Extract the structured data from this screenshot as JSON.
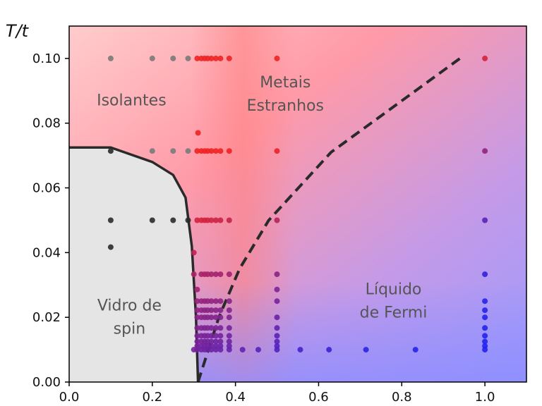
{
  "chart_data": {
    "type": "scatter",
    "ylabel": "T/t",
    "xlabel": "",
    "xlim": [
      0.0,
      1.1
    ],
    "ylim": [
      0.0,
      0.11
    ],
    "x_ticks": [
      "0.0",
      "0.2",
      "0.4",
      "0.6",
      "0.8",
      "1.0"
    ],
    "y_ticks": [
      "0.00",
      "0.02",
      "0.04",
      "0.06",
      "0.08",
      "0.10"
    ],
    "grid": false,
    "regions": [
      {
        "label_lines": [
          "Isolantes"
        ],
        "x": 0.15,
        "y": 0.087
      },
      {
        "label_lines": [
          "Metais",
          "Estranhos"
        ],
        "x": 0.52,
        "y": 0.089
      },
      {
        "label_lines": [
          "Vidro de",
          "spin"
        ],
        "x": 0.145,
        "y": 0.02
      },
      {
        "label_lines": [
          "Líquido",
          "de Fermi"
        ],
        "x": 0.78,
        "y": 0.025
      }
    ],
    "spin_glass_boundary": [
      [
        0.0,
        0.0725
      ],
      [
        0.1,
        0.0725
      ],
      [
        0.2,
        0.068
      ],
      [
        0.25,
        0.064
      ],
      [
        0.28,
        0.057
      ],
      [
        0.295,
        0.042
      ],
      [
        0.305,
        0.02
      ],
      [
        0.31,
        0.0
      ]
    ],
    "crossover_dashed": [
      [
        0.31,
        0.0
      ],
      [
        0.36,
        0.02
      ],
      [
        0.41,
        0.035
      ],
      [
        0.48,
        0.05
      ],
      [
        0.63,
        0.071
      ],
      [
        0.94,
        0.1
      ]
    ],
    "points": [
      [
        0.1,
        0.1
      ],
      [
        0.2,
        0.1
      ],
      [
        0.25,
        0.1
      ],
      [
        0.286,
        0.1
      ],
      [
        0.308,
        0.1
      ],
      [
        0.318,
        0.1
      ],
      [
        0.326,
        0.1
      ],
      [
        0.333,
        0.1
      ],
      [
        0.342,
        0.1
      ],
      [
        0.353,
        0.1
      ],
      [
        0.364,
        0.1
      ],
      [
        0.385,
        0.1
      ],
      [
        0.5,
        0.1
      ],
      [
        1.0,
        0.1
      ],
      [
        0.31,
        0.077
      ],
      [
        0.1,
        0.0714
      ],
      [
        0.2,
        0.0714
      ],
      [
        0.25,
        0.0714
      ],
      [
        0.286,
        0.0714
      ],
      [
        0.308,
        0.0714
      ],
      [
        0.318,
        0.0714
      ],
      [
        0.326,
        0.0714
      ],
      [
        0.333,
        0.0714
      ],
      [
        0.342,
        0.0714
      ],
      [
        0.353,
        0.0714
      ],
      [
        0.364,
        0.0714
      ],
      [
        0.385,
        0.0714
      ],
      [
        0.5,
        0.0714
      ],
      [
        1.0,
        0.0714
      ],
      [
        0.1,
        0.05
      ],
      [
        0.2,
        0.05
      ],
      [
        0.25,
        0.05
      ],
      [
        0.286,
        0.05
      ],
      [
        0.308,
        0.05
      ],
      [
        0.318,
        0.05
      ],
      [
        0.326,
        0.05
      ],
      [
        0.333,
        0.05
      ],
      [
        0.342,
        0.05
      ],
      [
        0.353,
        0.05
      ],
      [
        0.364,
        0.05
      ],
      [
        0.385,
        0.05
      ],
      [
        0.5,
        0.05
      ],
      [
        1.0,
        0.05
      ],
      [
        0.1,
        0.0417
      ],
      [
        0.3,
        0.04
      ],
      [
        0.3,
        0.0333
      ],
      [
        0.318,
        0.0333
      ],
      [
        0.326,
        0.0333
      ],
      [
        0.333,
        0.0333
      ],
      [
        0.342,
        0.0333
      ],
      [
        0.353,
        0.0333
      ],
      [
        0.364,
        0.0333
      ],
      [
        0.385,
        0.0333
      ],
      [
        0.5,
        0.0333
      ],
      [
        1.0,
        0.0333
      ],
      [
        0.308,
        0.0286
      ],
      [
        0.5,
        0.0286
      ],
      [
        0.308,
        0.025
      ],
      [
        0.318,
        0.025
      ],
      [
        0.326,
        0.025
      ],
      [
        0.333,
        0.025
      ],
      [
        0.342,
        0.025
      ],
      [
        0.353,
        0.025
      ],
      [
        0.364,
        0.025
      ],
      [
        0.385,
        0.025
      ],
      [
        0.5,
        0.025
      ],
      [
        1.0,
        0.025
      ],
      [
        0.308,
        0.0222
      ],
      [
        0.318,
        0.0222
      ],
      [
        0.326,
        0.0222
      ],
      [
        0.333,
        0.0222
      ],
      [
        0.342,
        0.0222
      ],
      [
        0.353,
        0.0222
      ],
      [
        0.364,
        0.0222
      ],
      [
        0.385,
        0.0222
      ],
      [
        1.0,
        0.0222
      ],
      [
        0.308,
        0.02
      ],
      [
        0.318,
        0.02
      ],
      [
        0.326,
        0.02
      ],
      [
        0.333,
        0.02
      ],
      [
        0.342,
        0.02
      ],
      [
        0.353,
        0.02
      ],
      [
        0.364,
        0.02
      ],
      [
        0.385,
        0.02
      ],
      [
        0.5,
        0.02
      ],
      [
        1.0,
        0.02
      ],
      [
        0.308,
        0.0167
      ],
      [
        0.318,
        0.0167
      ],
      [
        0.326,
        0.0167
      ],
      [
        0.333,
        0.0167
      ],
      [
        0.342,
        0.0167
      ],
      [
        0.353,
        0.0167
      ],
      [
        0.364,
        0.0167
      ],
      [
        0.385,
        0.0167
      ],
      [
        0.5,
        0.0167
      ],
      [
        1.0,
        0.0167
      ],
      [
        0.308,
        0.0143
      ],
      [
        0.318,
        0.0143
      ],
      [
        0.326,
        0.0143
      ],
      [
        0.333,
        0.0143
      ],
      [
        0.342,
        0.0143
      ],
      [
        0.353,
        0.0143
      ],
      [
        0.364,
        0.0143
      ],
      [
        0.385,
        0.0143
      ],
      [
        0.5,
        0.0143
      ],
      [
        1.0,
        0.0143
      ],
      [
        0.308,
        0.0125
      ],
      [
        0.318,
        0.0125
      ],
      [
        0.326,
        0.0125
      ],
      [
        0.333,
        0.0125
      ],
      [
        0.342,
        0.0125
      ],
      [
        0.353,
        0.0125
      ],
      [
        0.364,
        0.0125
      ],
      [
        0.385,
        0.0125
      ],
      [
        0.5,
        0.0125
      ],
      [
        1.0,
        0.0125
      ],
      [
        0.308,
        0.0111
      ],
      [
        0.318,
        0.0111
      ],
      [
        0.326,
        0.0111
      ],
      [
        0.333,
        0.0111
      ],
      [
        0.342,
        0.0111
      ],
      [
        0.353,
        0.0111
      ],
      [
        0.364,
        0.0111
      ],
      [
        0.385,
        0.0111
      ],
      [
        0.5,
        0.0111
      ],
      [
        1.0,
        0.0111
      ],
      [
        0.3,
        0.01
      ],
      [
        0.308,
        0.01
      ],
      [
        0.318,
        0.01
      ],
      [
        0.326,
        0.01
      ],
      [
        0.333,
        0.01
      ],
      [
        0.342,
        0.01
      ],
      [
        0.353,
        0.01
      ],
      [
        0.364,
        0.01
      ],
      [
        0.385,
        0.01
      ],
      [
        0.417,
        0.01
      ],
      [
        0.455,
        0.01
      ],
      [
        0.5,
        0.01
      ],
      [
        0.556,
        0.01
      ],
      [
        0.625,
        0.01
      ],
      [
        0.714,
        0.01
      ],
      [
        0.833,
        0.01
      ],
      [
        1.0,
        0.01
      ]
    ],
    "colors": {
      "insulator": "#ffd0d0",
      "strange_metal": "#ff8888",
      "fermi_liquid": "#9a9aff",
      "spin_glass_fill": "#e5e5e5",
      "boundary": "#2a2a2a",
      "point_gray": "#7a7a7a",
      "point_dark": "#2a2a2a",
      "point_red": "#ee2222",
      "point_blue": "#2222ee"
    }
  }
}
